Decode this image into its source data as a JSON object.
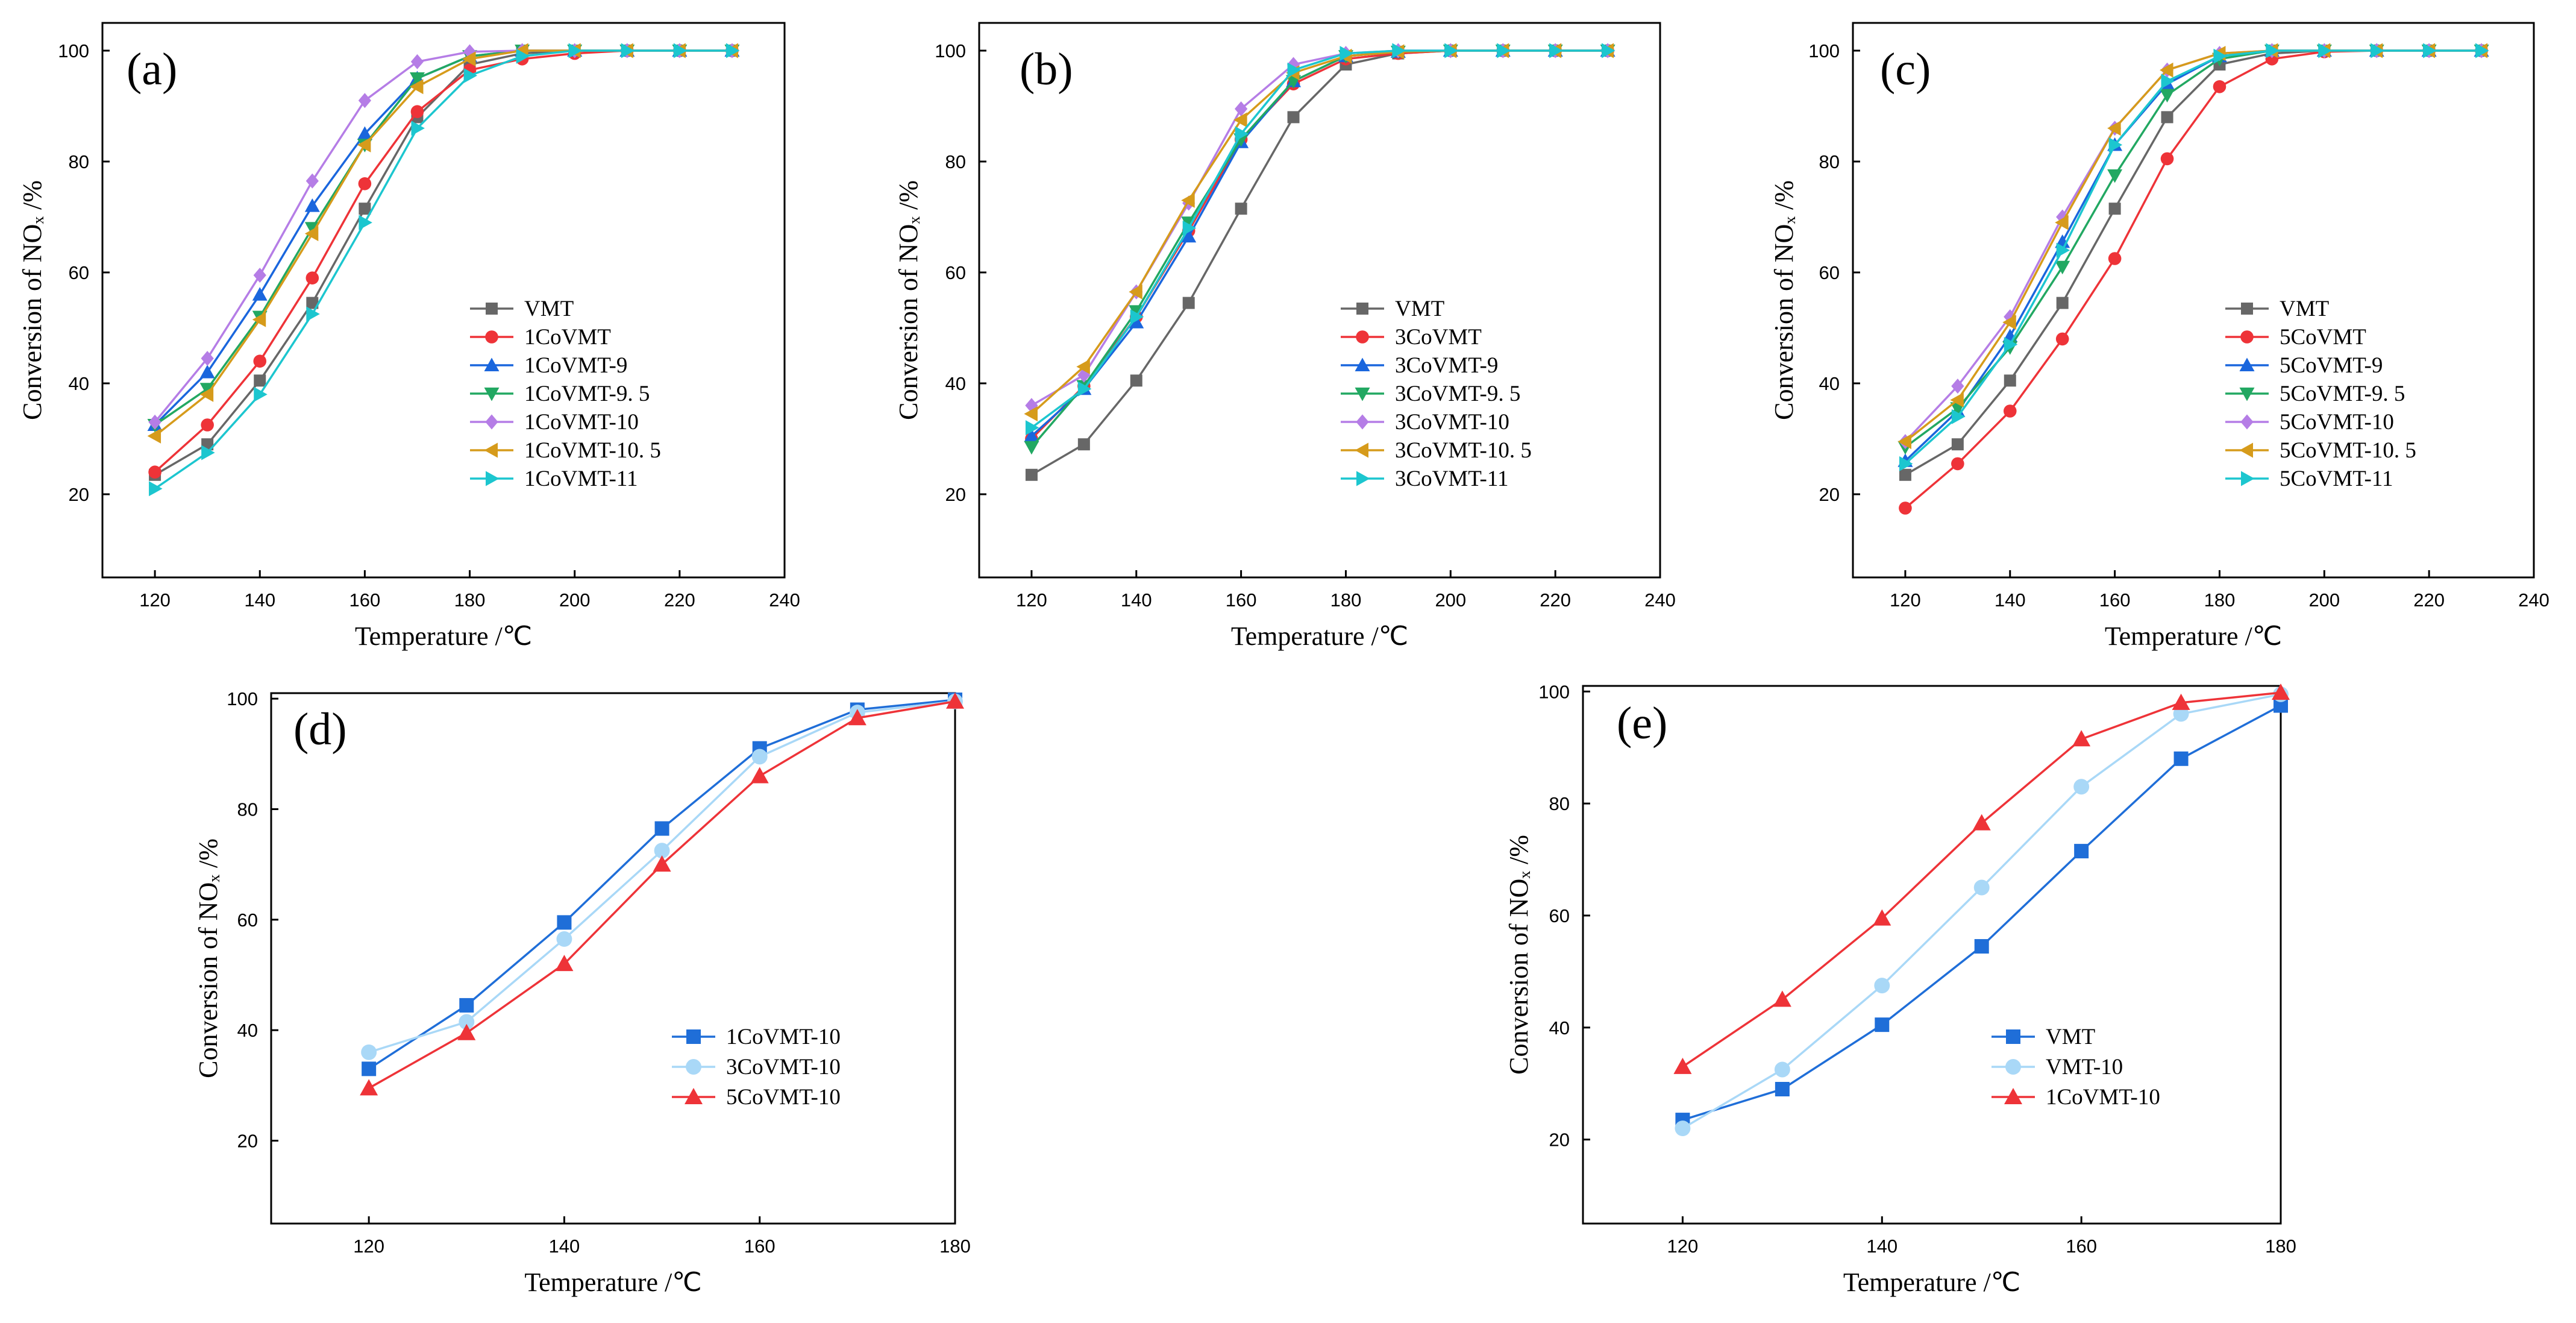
{
  "colors": {
    "VMT": "#676767",
    "1CoVMT": "#ee3338",
    "3CoVMT": "#ee3338",
    "5CoVMT": "#ee3338",
    "m9": "#1a66dd",
    "m95": "#22a862",
    "m10": "#b57de6",
    "m105": "#d69b1b",
    "m11": "#1cc6cf",
    "d1": "#1f6ed8",
    "d3": "#a9d8f7",
    "d5": "#ee3338"
  },
  "chart_data": [
    {
      "id": "a",
      "type": "line",
      "label": "(a)",
      "xlabel": "Temperature /℃",
      "ylabel": "Conversion of NOₓ /%",
      "xlim": [
        110,
        240
      ],
      "ylim": [
        5,
        105
      ],
      "xticks": [
        120,
        140,
        160,
        180,
        200,
        220,
        240
      ],
      "yticks": [
        20,
        40,
        60,
        80,
        100
      ],
      "x": [
        120,
        130,
        140,
        150,
        160,
        170,
        180,
        190,
        200,
        210,
        220,
        230
      ],
      "series": [
        {
          "name": "VMT",
          "marker": "square",
          "color": "VMT",
          "values": [
            23.5,
            29,
            40.5,
            54.5,
            71.5,
            88,
            97.5,
            99.5,
            100,
            100,
            100,
            100
          ]
        },
        {
          "name": "1CoVMT",
          "marker": "circle",
          "color": "1CoVMT",
          "values": [
            24,
            32.5,
            44,
            59,
            76,
            89,
            96.5,
            98.5,
            99.5,
            100,
            100,
            100
          ]
        },
        {
          "name": "1CoVMT-9",
          "marker": "triangle-up",
          "color": "m9",
          "values": [
            32.5,
            42,
            56,
            72,
            85,
            95,
            99,
            100,
            100,
            100,
            100,
            100
          ]
        },
        {
          "name": "1CoVMT-9.5",
          "marker": "triangle-down",
          "color": "m95",
          "values": [
            32.5,
            39,
            52,
            68,
            83,
            95,
            99,
            100,
            100,
            100,
            100,
            100
          ]
        },
        {
          "name": "1CoVMT-10",
          "marker": "diamond",
          "color": "m10",
          "values": [
            33,
            44.5,
            59.5,
            76.5,
            91,
            98,
            99.8,
            100,
            100,
            100,
            100,
            100
          ]
        },
        {
          "name": "1CoVMT-10.5",
          "marker": "triangle-left",
          "color": "m105",
          "values": [
            30.5,
            38,
            51.5,
            67,
            83,
            93.5,
            98.5,
            100,
            100,
            100,
            100,
            100
          ]
        },
        {
          "name": "1CoVMT-11",
          "marker": "triangle-right",
          "color": "m11",
          "values": [
            21,
            27.5,
            38,
            52.5,
            69,
            86,
            95.5,
            99,
            100,
            100,
            100,
            100
          ]
        }
      ],
      "legend": [
        "VMT",
        "1CoVMT",
        "1CoVMT-9",
        "1CoVMT-9.5",
        "1CoVMT-10",
        "1CoVMT-10.5",
        "1CoVMT-11"
      ],
      "legend_labels": [
        "VMT",
        "1CoVMT",
        "1CoVMT-9",
        "1CoVMT-9. 5",
        "1CoVMT-10",
        "1CoVMT-10. 5",
        "1CoVMT-11"
      ]
    },
    {
      "id": "b",
      "type": "line",
      "label": "(b)",
      "xlabel": "Temperature /℃",
      "ylabel": "Conversion of NOₓ /%",
      "xlim": [
        110,
        240
      ],
      "ylim": [
        5,
        105
      ],
      "xticks": [
        120,
        140,
        160,
        180,
        200,
        220,
        240
      ],
      "yticks": [
        20,
        40,
        60,
        80,
        100
      ],
      "x": [
        120,
        130,
        140,
        150,
        160,
        170,
        180,
        190,
        200,
        210,
        220,
        230
      ],
      "series": [
        {
          "name": "VMT",
          "marker": "square",
          "color": "VMT",
          "values": [
            23.5,
            29,
            40.5,
            54.5,
            71.5,
            88,
            97.5,
            99.5,
            100,
            100,
            100,
            100
          ]
        },
        {
          "name": "3CoVMT",
          "marker": "circle",
          "color": "3CoVMT",
          "values": [
            30,
            39.5,
            52,
            67.5,
            84,
            94,
            98.5,
            99.5,
            100,
            100,
            100,
            100
          ]
        },
        {
          "name": "3CoVMT-9",
          "marker": "triangle-up",
          "color": "m9",
          "values": [
            30.5,
            39,
            51,
            66.5,
            83.5,
            94.5,
            99,
            99.8,
            100,
            100,
            100,
            100
          ]
        },
        {
          "name": "3CoVMT-9.5",
          "marker": "triangle-down",
          "color": "m95",
          "values": [
            28.5,
            39.5,
            53,
            69,
            84,
            94.5,
            99,
            99.8,
            100,
            100,
            100,
            100
          ]
        },
        {
          "name": "3CoVMT-10",
          "marker": "diamond",
          "color": "m10",
          "values": [
            36,
            41.5,
            56.5,
            72.5,
            89.5,
            97.5,
            99.5,
            100,
            100,
            100,
            100,
            100
          ]
        },
        {
          "name": "3CoVMT-10.5",
          "marker": "triangle-left",
          "color": "m105",
          "values": [
            34.5,
            43,
            56.5,
            73,
            87.5,
            96,
            99,
            99.8,
            100,
            100,
            100,
            100
          ]
        },
        {
          "name": "3CoVMT-11",
          "marker": "triangle-right",
          "color": "m11",
          "values": [
            32,
            39,
            52,
            68,
            85,
            96.5,
            99.5,
            100,
            100,
            100,
            100,
            100
          ]
        }
      ],
      "legend": [
        "VMT",
        "3CoVMT",
        "3CoVMT-9",
        "3CoVMT-9.5",
        "3CoVMT-10",
        "3CoVMT-10.5",
        "3CoVMT-11"
      ],
      "legend_labels": [
        "VMT",
        "3CoVMT",
        "3CoVMT-9",
        "3CoVMT-9. 5",
        "3CoVMT-10",
        "3CoVMT-10. 5",
        "3CoVMT-11"
      ]
    },
    {
      "id": "c",
      "type": "line",
      "label": "(c)",
      "xlabel": "Temperature /℃",
      "ylabel": "Conversion of NOₓ /%",
      "xlim": [
        110,
        240
      ],
      "ylim": [
        5,
        105
      ],
      "xticks": [
        120,
        140,
        160,
        180,
        200,
        220,
        240
      ],
      "yticks": [
        20,
        40,
        60,
        80,
        100
      ],
      "x": [
        120,
        130,
        140,
        150,
        160,
        170,
        180,
        190,
        200,
        210,
        220,
        230
      ],
      "series": [
        {
          "name": "VMT",
          "marker": "square",
          "color": "VMT",
          "values": [
            23.5,
            29,
            40.5,
            54.5,
            71.5,
            88,
            97.5,
            99.5,
            100,
            100,
            100,
            100
          ]
        },
        {
          "name": "5CoVMT",
          "marker": "circle",
          "color": "5CoVMT",
          "values": [
            17.5,
            25.5,
            35,
            48,
            62.5,
            80.5,
            93.5,
            98.5,
            99.8,
            100,
            100,
            100
          ]
        },
        {
          "name": "5CoVMT-9",
          "marker": "triangle-up",
          "color": "m9",
          "values": [
            26,
            35,
            48.5,
            65.5,
            83,
            94,
            99,
            100,
            100,
            100,
            100,
            100
          ]
        },
        {
          "name": "5CoVMT-9.5",
          "marker": "triangle-down",
          "color": "m95",
          "values": [
            28.5,
            35.5,
            46.5,
            61,
            77.5,
            92,
            98.5,
            100,
            100,
            100,
            100,
            100
          ]
        },
        {
          "name": "5CoVMT-10",
          "marker": "diamond",
          "color": "m10",
          "values": [
            29.5,
            39.5,
            52,
            70,
            86,
            96.5,
            99.5,
            100,
            100,
            100,
            100,
            100
          ]
        },
        {
          "name": "5CoVMT-10.5",
          "marker": "triangle-left",
          "color": "m105",
          "values": [
            29.5,
            37,
            51,
            69,
            86,
            96.5,
            99.5,
            100,
            100,
            100,
            100,
            100
          ]
        },
        {
          "name": "5CoVMT-11",
          "marker": "triangle-right",
          "color": "m11",
          "values": [
            25.5,
            34,
            47,
            64,
            83,
            94.5,
            99,
            100,
            100,
            100,
            100,
            100
          ]
        }
      ],
      "legend": [
        "VMT",
        "5CoVMT",
        "5CoVMT-9",
        "5CoVMT-9.5",
        "5CoVMT-10",
        "5CoVMT-10.5",
        "5CoVMT-11"
      ],
      "legend_labels": [
        "VMT",
        "5CoVMT",
        "5CoVMT-9",
        "5CoVMT-9. 5",
        "5CoVMT-10",
        "5CoVMT-10. 5",
        "5CoVMT-11"
      ]
    },
    {
      "id": "d",
      "type": "line",
      "label": "(d)",
      "xlabel": "Temperature /℃",
      "ylabel": "Conversion of NOₓ /%",
      "xlim": [
        110,
        180
      ],
      "ylim": [
        5,
        101
      ],
      "xticks": [
        120,
        140,
        160,
        180
      ],
      "yticks": [
        20,
        40,
        60,
        80,
        100
      ],
      "x": [
        120,
        130,
        140,
        150,
        160,
        170,
        180
      ],
      "series": [
        {
          "name": "1CoVMT-10",
          "marker": "square",
          "color": "d1",
          "values": [
            33,
            44.5,
            59.5,
            76.5,
            91,
            98,
            99.8
          ]
        },
        {
          "name": "3CoVMT-10",
          "marker": "circle",
          "color": "d3",
          "values": [
            36,
            41.5,
            56.5,
            72.5,
            89.5,
            97.5,
            99.5
          ]
        },
        {
          "name": "5CoVMT-10",
          "marker": "triangle-up",
          "color": "d5",
          "values": [
            29.5,
            39.5,
            52,
            70,
            86,
            96.5,
            99.5
          ]
        }
      ],
      "legend": [
        "1CoVMT-10",
        "3CoVMT-10",
        "5CoVMT-10"
      ],
      "legend_labels": [
        "1CoVMT-10",
        "3CoVMT-10",
        "5CoVMT-10"
      ]
    },
    {
      "id": "e",
      "type": "line",
      "label": "(e)",
      "xlabel": "Temperature /℃",
      "ylabel": "Conversion of NOₓ /%",
      "xlim": [
        110,
        180
      ],
      "ylim": [
        5,
        101
      ],
      "xticks": [
        120,
        140,
        160,
        180
      ],
      "yticks": [
        20,
        40,
        60,
        80,
        100
      ],
      "x": [
        120,
        130,
        140,
        150,
        160,
        170,
        180
      ],
      "series": [
        {
          "name": "VMT",
          "marker": "square",
          "color": "d1",
          "values": [
            23.5,
            29,
            40.5,
            54.5,
            71.5,
            88,
            97.5
          ]
        },
        {
          "name": "VMT-10",
          "marker": "circle",
          "color": "d3",
          "values": [
            22,
            32.5,
            47.5,
            65,
            83,
            96,
            99.5
          ]
        },
        {
          "name": "1CoVMT-10",
          "marker": "triangle-up",
          "color": "d5",
          "values": [
            33,
            45,
            59.5,
            76.5,
            91.5,
            98,
            99.8
          ]
        }
      ],
      "legend": [
        "VMT",
        "VMT-10",
        "1CoVMT-10"
      ],
      "legend_labels": [
        "VMT",
        "VMT-10",
        "1CoVMT-10"
      ]
    }
  ]
}
